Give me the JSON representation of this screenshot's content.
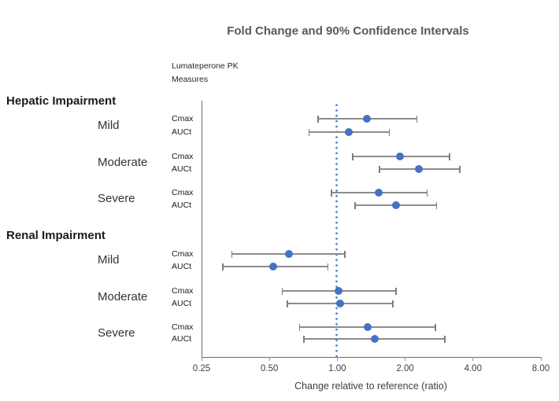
{
  "chart": {
    "title": "Fold Change and 90% Confidence Intervals",
    "measures_header": {
      "line1": "Lumateperone PK",
      "line2": "Measures"
    },
    "xlabel": "Change relative to reference (ratio)"
  },
  "colors": {
    "marker": "#4472C4",
    "reference_line": "#4472C4",
    "error_bar": "#8C8C8C",
    "axis": "#5B6E84",
    "title_text": "#595959",
    "label_text": "#262626"
  },
  "chart_data": {
    "type": "scatter",
    "subtype": "forest-plot-with-ci",
    "title": "Fold Change and 90% Confidence Intervals",
    "xlabel": "Change relative to reference (ratio)",
    "ylabel": "",
    "ci_level": "90%",
    "x_scale": "log2",
    "xlim": [
      0.25,
      8.0
    ],
    "x_ticks": [
      0.25,
      0.5,
      1.0,
      2.0,
      4.0,
      8.0
    ],
    "x_tick_labels": [
      "0.25",
      "0.50",
      "1.00",
      "2.00",
      "4.00",
      "8.00"
    ],
    "reference_line": 1.0,
    "grid": false,
    "legend": "none",
    "measures_header": [
      "Lumateperone PK",
      "Measures"
    ],
    "groups": [
      {
        "label": "Hepatic Impairment",
        "conditions": [
          {
            "label": "Mild",
            "measures": [
              {
                "measure": "Cmax",
                "ratio": 1.35,
                "ci_low": 0.82,
                "ci_high": 2.25
              },
              {
                "measure": "AUCt",
                "ratio": 1.12,
                "ci_low": 0.75,
                "ci_high": 1.7
              }
            ]
          },
          {
            "label": "Moderate",
            "measures": [
              {
                "measure": "Cmax",
                "ratio": 1.9,
                "ci_low": 1.17,
                "ci_high": 3.15
              },
              {
                "measure": "AUCt",
                "ratio": 2.3,
                "ci_low": 1.54,
                "ci_high": 3.5
              }
            ]
          },
          {
            "label": "Severe",
            "measures": [
              {
                "measure": "Cmax",
                "ratio": 1.52,
                "ci_low": 0.94,
                "ci_high": 2.5
              },
              {
                "measure": "AUCt",
                "ratio": 1.82,
                "ci_low": 1.2,
                "ci_high": 2.75
              }
            ]
          }
        ]
      },
      {
        "label": "Renal Impairment",
        "conditions": [
          {
            "label": "Mild",
            "measures": [
              {
                "measure": "Cmax",
                "ratio": 0.61,
                "ci_low": 0.34,
                "ci_high": 1.08
              },
              {
                "measure": "AUCt",
                "ratio": 0.52,
                "ci_low": 0.31,
                "ci_high": 0.91
              }
            ]
          },
          {
            "label": "Moderate",
            "measures": [
              {
                "measure": "Cmax",
                "ratio": 1.01,
                "ci_low": 0.57,
                "ci_high": 1.82
              },
              {
                "measure": "AUCt",
                "ratio": 1.03,
                "ci_low": 0.6,
                "ci_high": 1.76
              }
            ]
          },
          {
            "label": "Severe",
            "measures": [
              {
                "measure": "Cmax",
                "ratio": 1.36,
                "ci_low": 0.68,
                "ci_high": 2.72
              },
              {
                "measure": "AUCt",
                "ratio": 1.47,
                "ci_low": 0.71,
                "ci_high": 3.0
              }
            ]
          }
        ]
      }
    ]
  }
}
